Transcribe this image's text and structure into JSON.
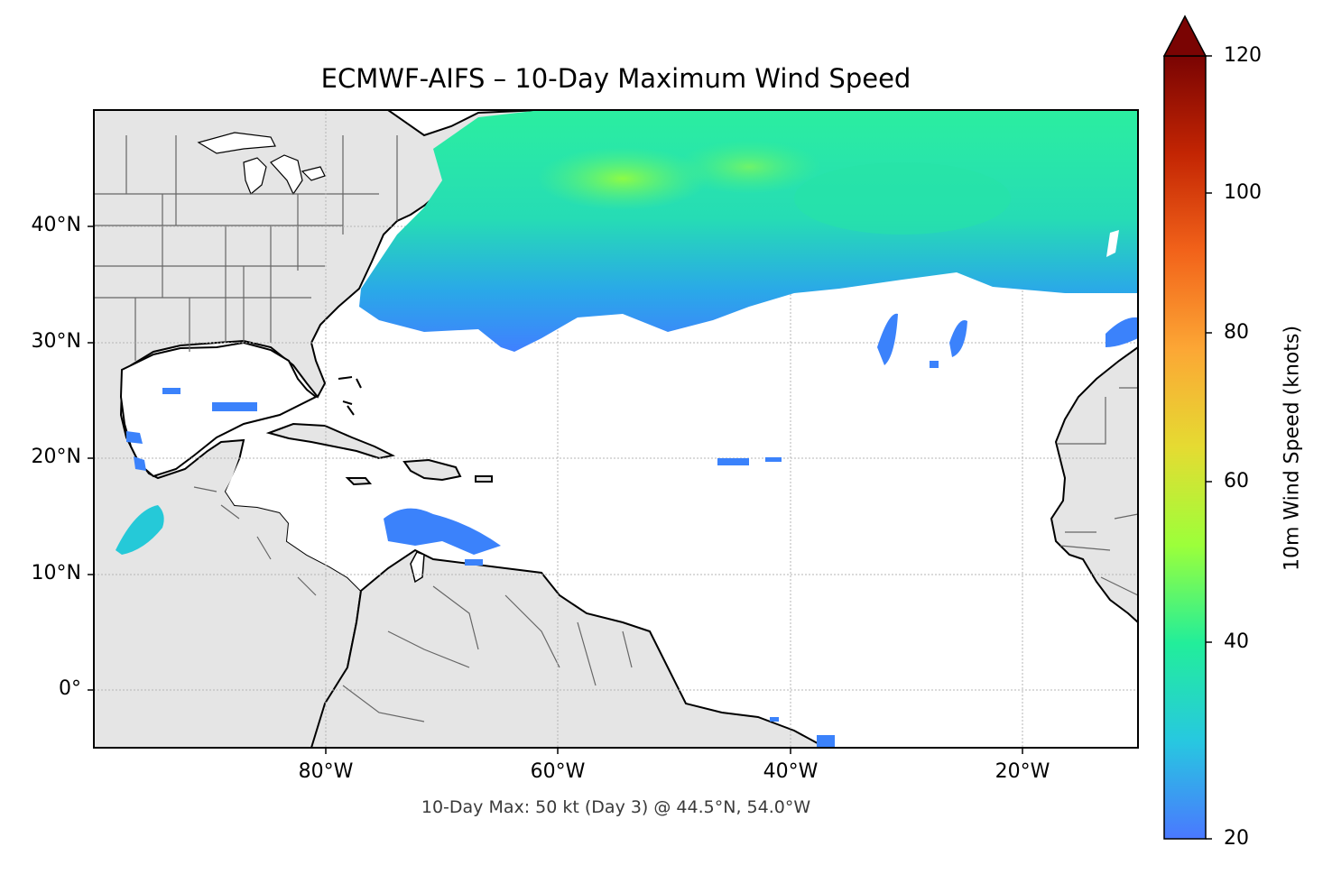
{
  "title": "ECMWF-AIFS – 10-Day Maximum Wind Speed",
  "footnote": "10-Day Max: 50 kt (Day 3) @ 44.5°N, 54.0°W",
  "map": {
    "extent": {
      "lon_min": -100,
      "lon_max": -10,
      "lat_min": -5,
      "lat_max": 50
    },
    "lat_ticks": [
      "40°N",
      "30°N",
      "20°N",
      "10°N",
      "0°"
    ],
    "lon_ticks": [
      "80°W",
      "60°W",
      "40°W",
      "20°W"
    ],
    "land_color": "#e5e5e5",
    "ocean_color": "#ffffff",
    "grid": "dotted"
  },
  "colorbar": {
    "label": "10m Wind Speed (knots)",
    "ticks": [
      "20",
      "40",
      "60",
      "80",
      "100",
      "120"
    ],
    "min": 20,
    "max": 120,
    "extend": "max",
    "colormap": [
      "#4a78ff",
      "#27c8e0",
      "#22ee9a",
      "#9cff3a",
      "#e5db32",
      "#fca735",
      "#f2631a",
      "#c32503",
      "#7a0403"
    ]
  }
}
